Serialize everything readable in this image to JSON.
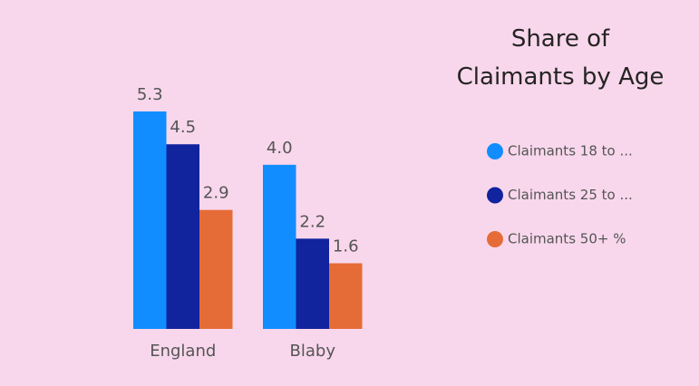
{
  "chart_data": {
    "type": "bar",
    "title": "Share of\nClaimants by Age",
    "categories": [
      "England",
      "Blaby"
    ],
    "series": [
      {
        "name": "Claimants 18 to ...",
        "color": "#118dff",
        "values": [
          5.3,
          4.0
        ],
        "value_labels": [
          "5.3",
          "4.0"
        ]
      },
      {
        "name": "Claimants 25 to ...",
        "color": "#12239e",
        "values": [
          4.5,
          2.2
        ],
        "value_labels": [
          "4.5",
          "2.2"
        ]
      },
      {
        "name": "Claimants 50+ %",
        "color": "#e66c37",
        "values": [
          2.9,
          1.6
        ],
        "value_labels": [
          "2.9",
          "1.6"
        ]
      }
    ],
    "legend": "right"
  }
}
